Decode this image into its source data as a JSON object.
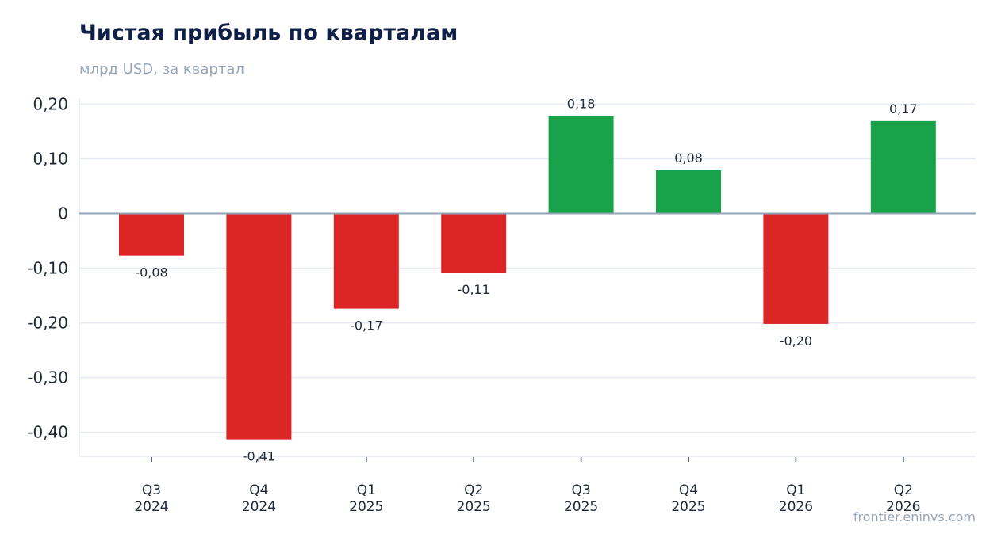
{
  "title": "Чистая прибыль по кварталам",
  "subtitle": "млрд USD, за квартал",
  "watermark": "frontier.eninvs.com",
  "colors": {
    "positive": "#18a34a",
    "negative": "#dc2626",
    "zero_line": "#94a3b8",
    "grid": "#e5e9f2",
    "axis": "#e5e9f2"
  },
  "chart_data": {
    "type": "bar",
    "categories": [
      [
        "Q3",
        "2024"
      ],
      [
        "Q4",
        "2024"
      ],
      [
        "Q1",
        "2025"
      ],
      [
        "Q2",
        "2025"
      ],
      [
        "Q3",
        "2025"
      ],
      [
        "Q4",
        "2025"
      ],
      [
        "Q1",
        "2026"
      ],
      [
        "Q2",
        "2026"
      ]
    ],
    "values": [
      -0.077,
      -0.413,
      -0.174,
      -0.108,
      0.178,
      0.079,
      -0.202,
      0.169
    ],
    "data_labels": [
      "-0,08",
      "-0,41",
      "-0,17",
      "-0,11",
      "0,18",
      "0,08",
      "-0,20",
      "0,17"
    ],
    "title": "Чистая прибыль по кварталам",
    "subtitle": "млрд USD, за квартал",
    "ylim": [
      -0.444,
      0.205
    ],
    "yticks": [
      0.2,
      0.1,
      0,
      -0.1,
      -0.2,
      -0.3,
      -0.4
    ],
    "ytick_labels": [
      "0,20",
      "0,10",
      "0",
      "-0,10",
      "-0,20",
      "-0,30",
      "-0,40"
    ],
    "grid": true,
    "legend": "none"
  }
}
